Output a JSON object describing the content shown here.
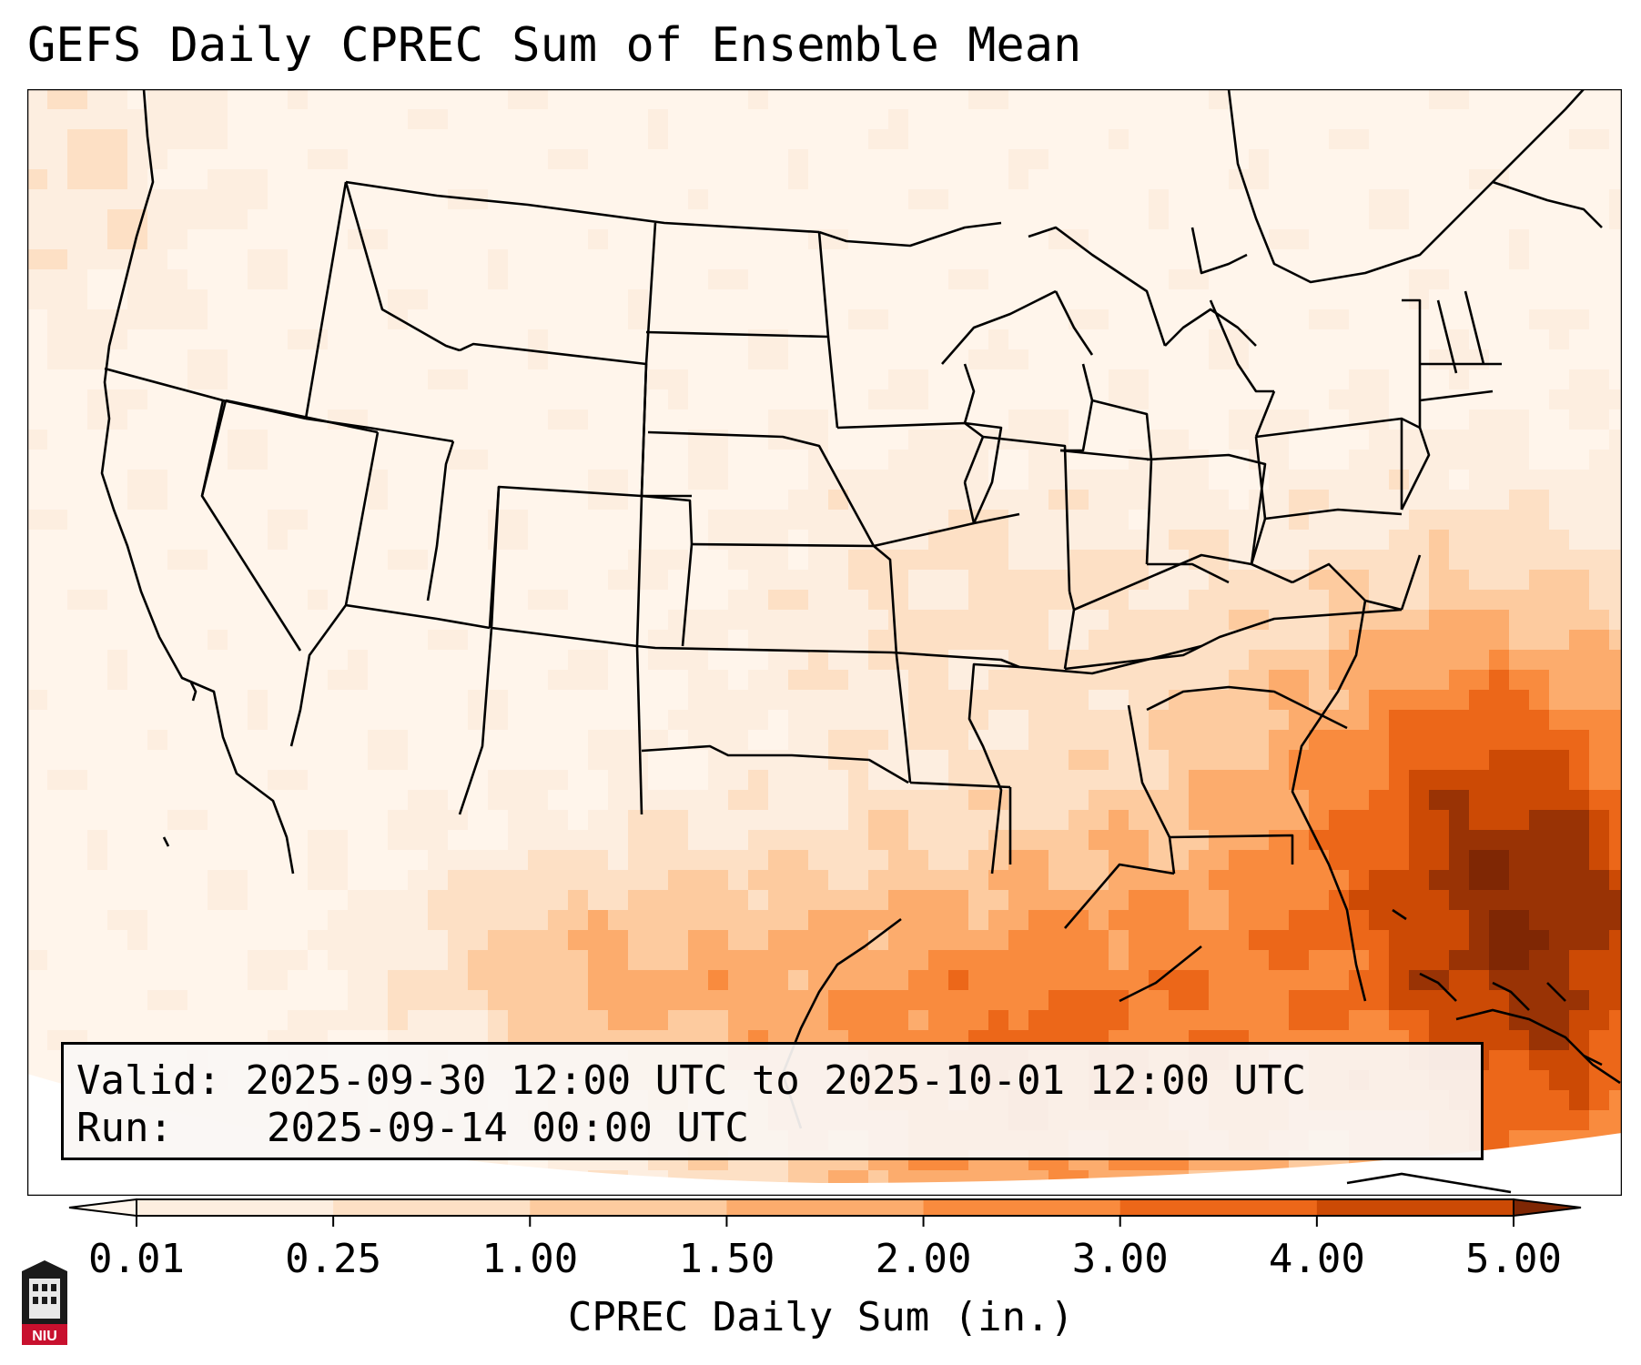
{
  "title": "GEFS Daily CPREC Sum of Ensemble Mean",
  "info": {
    "valid_label": "Valid:",
    "valid_value": "2025-09-30 12:00 UTC to 2025-10-01 12:00 UTC",
    "run_label": "Run:",
    "run_value": "2025-09-14 00:00 UTC"
  },
  "colorbar": {
    "label": "CPREC Daily Sum (in.)",
    "ticks": [
      "0.01",
      "0.25",
      "1.00",
      "1.50",
      "2.00",
      "3.00",
      "4.00",
      "5.00"
    ],
    "colors": [
      "#fdeee0",
      "#fde0c5",
      "#fdcb9f",
      "#fcac6d",
      "#f98b3e",
      "#ec6719",
      "#cc4a05",
      "#993305"
    ],
    "under_color": "#fff5eb",
    "over_color": "#7f2704"
  },
  "map": {
    "region": "CONUS",
    "background_color": "#fde8d4",
    "outline_color": "#000000"
  },
  "logo": {
    "text": "NIU",
    "color": "#c8102e"
  }
}
